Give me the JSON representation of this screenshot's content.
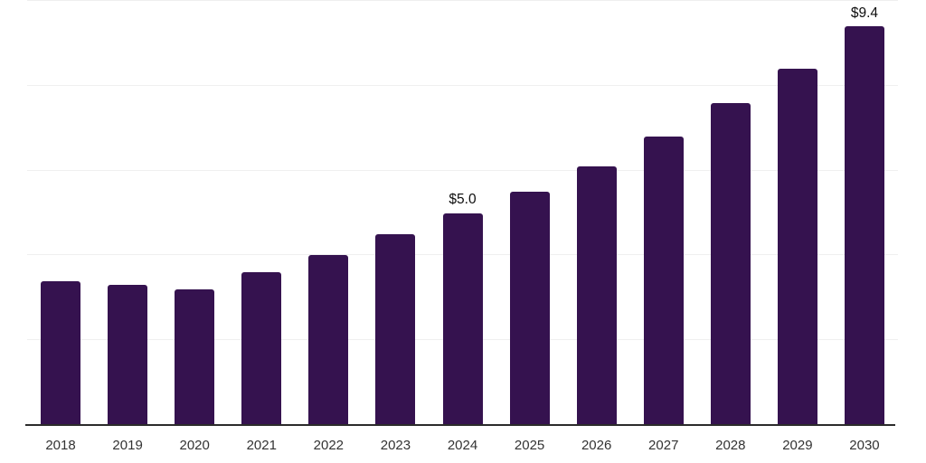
{
  "chart_data": {
    "type": "bar",
    "title": "",
    "xlabel": "",
    "ylabel": "",
    "categories": [
      "2018",
      "2019",
      "2020",
      "2021",
      "2022",
      "2023",
      "2024",
      "2025",
      "2026",
      "2027",
      "2028",
      "2029",
      "2030"
    ],
    "values": [
      3.4,
      3.3,
      3.2,
      3.6,
      4.0,
      4.5,
      5.0,
      5.5,
      6.1,
      6.8,
      7.6,
      8.4,
      9.4
    ],
    "point_labels": [
      "",
      "",
      "",
      "",
      "",
      "",
      "$5.0",
      "",
      "",
      "",
      "",
      "",
      "$9.4"
    ],
    "ylim": [
      0,
      10
    ],
    "gridline_step": 2,
    "grid": "on",
    "legend": "none",
    "colors": {
      "bar": "#35124F",
      "gridline": "#efefef",
      "axis_line": "#2b2b2b",
      "tick_label": "#333333",
      "value_label": "#0d0d0d",
      "background": "#ffffff"
    }
  }
}
